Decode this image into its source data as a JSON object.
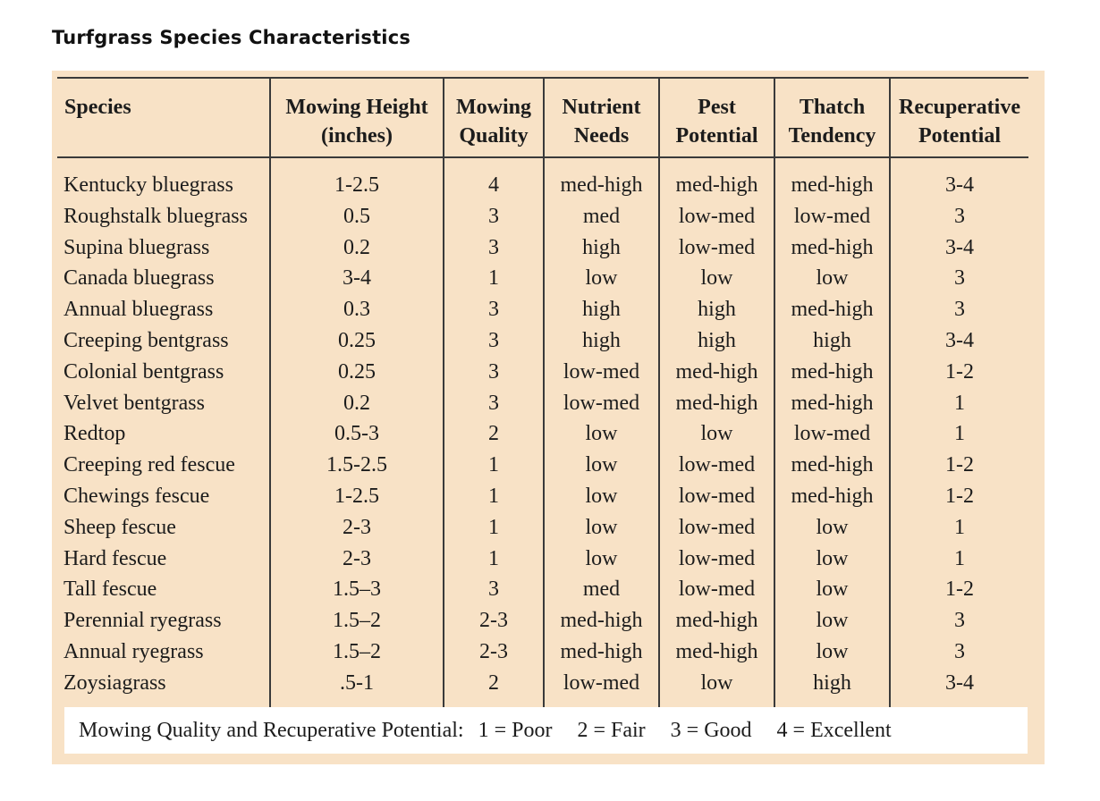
{
  "title": "Turfgrass Species Characteristics",
  "columns": [
    [
      "Species"
    ],
    [
      "Mowing Height",
      "(inches)"
    ],
    [
      "Mowing",
      "Quality"
    ],
    [
      "Nutrient",
      "Needs"
    ],
    [
      "Pest",
      "Potential"
    ],
    [
      "Thatch",
      "Tendency"
    ],
    [
      "Recuperative",
      "Potential"
    ]
  ],
  "rows": [
    [
      "Kentucky bluegrass",
      "1-2.5",
      "4",
      "med-high",
      "med-high",
      "med-high",
      "3-4"
    ],
    [
      "Roughstalk bluegrass",
      "0.5",
      "3",
      "med",
      "low-med",
      "low-med",
      "3"
    ],
    [
      "Supina bluegrass",
      "0.2",
      "3",
      "high",
      "low-med",
      "med-high",
      "3-4"
    ],
    [
      "Canada bluegrass",
      "3-4",
      "1",
      "low",
      "low",
      "low",
      "3"
    ],
    [
      "Annual bluegrass",
      "0.3",
      "3",
      "high",
      "high",
      "med-high",
      "3"
    ],
    [
      "Creeping bentgrass",
      "0.25",
      "3",
      "high",
      "high",
      "high",
      "3-4"
    ],
    [
      "Colonial bentgrass",
      "0.25",
      "3",
      "low-med",
      "med-high",
      "med-high",
      "1-2"
    ],
    [
      "Velvet bentgrass",
      "0.2",
      "3",
      "low-med",
      "med-high",
      "med-high",
      "1"
    ],
    [
      "Redtop",
      "0.5-3",
      "2",
      "low",
      "low",
      "low-med",
      "1"
    ],
    [
      "Creeping red fescue",
      "1.5-2.5",
      "1",
      "low",
      "low-med",
      "med-high",
      "1-2"
    ],
    [
      "Chewings fescue",
      "1-2.5",
      "1",
      "low",
      "low-med",
      "med-high",
      "1-2"
    ],
    [
      "Sheep fescue",
      "2-3",
      "1",
      "low",
      "low-med",
      "low",
      "1"
    ],
    [
      "Hard fescue",
      "2-3",
      "1",
      "low",
      "low-med",
      "low",
      "1"
    ],
    [
      "Tall fescue",
      "1.5–3",
      "3",
      "med",
      "low-med",
      "low",
      "1-2"
    ],
    [
      "Perennial ryegrass",
      "1.5–2",
      "2-3",
      "med-high",
      "med-high",
      "low",
      "3"
    ],
    [
      "Annual ryegrass",
      "1.5–2",
      "2-3",
      "med-high",
      "med-high",
      "low",
      "3"
    ],
    [
      "Zoysiagrass",
      ".5-1",
      "2",
      "low-med",
      "low",
      "high",
      "3-4"
    ]
  ],
  "legend": {
    "lead": "Mowing Quality and Recuperative Potential:",
    "items": [
      "1 = Poor",
      "2 = Fair",
      "3 = Good",
      "4 = Excellent"
    ]
  }
}
